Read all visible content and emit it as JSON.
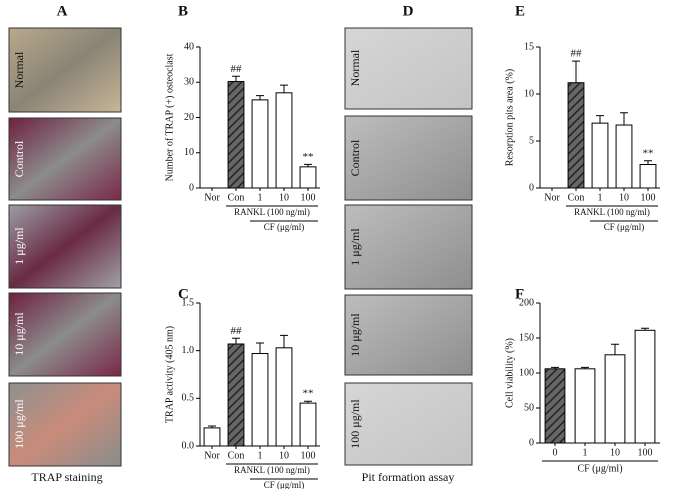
{
  "chart_data": [
    {
      "type": "bar",
      "panel": "B",
      "ylabel": "Number of TRAP (+) osteoclast",
      "categories": [
        "Nor",
        "Con",
        "1",
        "10",
        "100"
      ],
      "values": [
        0,
        30.2,
        25,
        27,
        6
      ],
      "errors": [
        0,
        1.5,
        1.2,
        2.2,
        0.7
      ],
      "annotations": [
        null,
        "##",
        null,
        null,
        "**"
      ],
      "hatched": [
        false,
        true,
        false,
        false,
        false
      ],
      "groups": [
        {
          "label": "RANKL (100 ng/ml)",
          "span": [
            1,
            4
          ]
        },
        {
          "label": "CF (μg/ml)",
          "span": [
            2,
            4
          ]
        }
      ],
      "ylim": [
        0,
        40
      ],
      "yticks": [
        0,
        10,
        20,
        30,
        40
      ]
    },
    {
      "type": "bar",
      "panel": "C",
      "ylabel": "TRAP activity (405 nm)",
      "categories": [
        "Nor",
        "Con",
        "1",
        "10",
        "100"
      ],
      "values": [
        0.19,
        1.07,
        0.97,
        1.03,
        0.45
      ],
      "errors": [
        0.02,
        0.06,
        0.11,
        0.13,
        0.02
      ],
      "annotations": [
        null,
        "##",
        null,
        null,
        "**"
      ],
      "hatched": [
        false,
        true,
        false,
        false,
        false
      ],
      "groups": [
        {
          "label": "RANKL (100 ng/ml)",
          "span": [
            1,
            4
          ]
        },
        {
          "label": "CF (μg/ml)",
          "span": [
            2,
            4
          ]
        }
      ],
      "ylim": [
        0,
        1.5
      ],
      "yticks": [
        {
          "value": 0,
          "label": "0.0"
        },
        {
          "value": 0.5,
          "label": "0.5"
        },
        {
          "value": 1,
          "label": "1.0"
        },
        {
          "value": 1.5,
          "label": "1.5"
        }
      ]
    },
    {
      "type": "bar",
      "panel": "E",
      "ylabel": "Resorption pits area (%)",
      "categories": [
        "Nor",
        "Con",
        "1",
        "10",
        "100"
      ],
      "values": [
        0,
        11.2,
        6.9,
        6.7,
        2.5
      ],
      "errors": [
        0,
        2.3,
        0.8,
        1.3,
        0.4
      ],
      "annotations": [
        null,
        "##",
        null,
        null,
        "**"
      ],
      "hatched": [
        false,
        true,
        false,
        false,
        false
      ],
      "groups": [
        {
          "label": "RANKL (100 ng/ml)",
          "span": [
            1,
            4
          ]
        },
        {
          "label": "CF (μg/ml)",
          "span": [
            2,
            4
          ]
        }
      ],
      "ylim": [
        0,
        15
      ],
      "yticks": [
        0,
        5,
        10,
        15
      ]
    },
    {
      "type": "bar",
      "panel": "F",
      "ylabel": "Cell viability (%)",
      "xlabel": "CF (μg/ml)",
      "categories": [
        "0",
        "1",
        "10",
        "100"
      ],
      "values": [
        106,
        106,
        126,
        161
      ],
      "errors": [
        2,
        2,
        15,
        3
      ],
      "hatched": [
        true,
        false,
        false,
        false
      ],
      "ylim": [
        0,
        200
      ],
      "yticks": [
        0,
        50,
        100,
        150,
        200
      ]
    }
  ],
  "figure": {
    "panel_a": "A",
    "panel_d": "D",
    "trap_rows": [
      "Normal",
      "Control",
      "1 μg/ml",
      "10 μg/ml",
      "100 μg/ml"
    ],
    "trap_caption": "TRAP staining",
    "pit_rows": [
      "Normal",
      "Control",
      "1 μg/ml",
      "10 μg/ml",
      "100 μg/ml"
    ],
    "pit_caption": "Pit formation assay"
  }
}
